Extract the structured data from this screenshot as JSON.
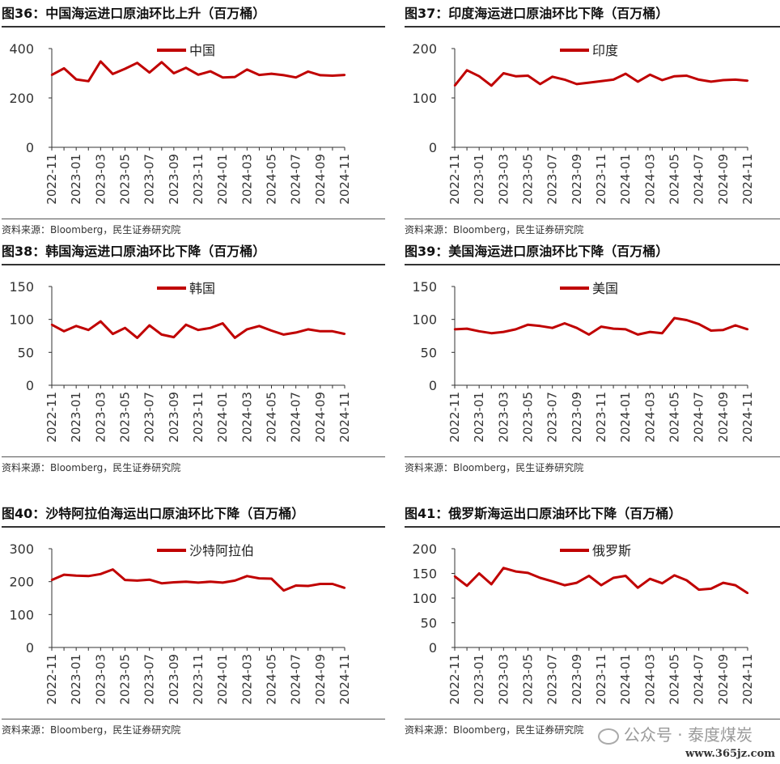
{
  "source_text": "资料来源：Bloomberg，民生证券研究院",
  "watermark": "公众号 · 泰度煤炭",
  "site": "www.365jz.com",
  "chart_data": [
    {
      "type": "line",
      "title": "图36：中国海运进口原油环比上升（百万桶）",
      "x": [
        "2022-11",
        "2022-12",
        "2023-01",
        "2023-02",
        "2023-03",
        "2023-04",
        "2023-05",
        "2023-06",
        "2023-07",
        "2023-08",
        "2023-09",
        "2023-10",
        "2023-11",
        "2023-12",
        "2024-01",
        "2024-02",
        "2024-03",
        "2024-04",
        "2024-05",
        "2024-06",
        "2024-07",
        "2024-08",
        "2024-09",
        "2024-10",
        "2024-11"
      ],
      "tick_labels": [
        "2022-11",
        "2023-01",
        "2023-03",
        "2023-05",
        "2023-07",
        "2023-09",
        "2023-11",
        "2024-01",
        "2024-03",
        "2024-05",
        "2024-07",
        "2024-09",
        "2024-11"
      ],
      "series": [
        {
          "name": "中国",
          "values": [
            293,
            320,
            275,
            268,
            348,
            297,
            318,
            342,
            303,
            345,
            300,
            322,
            294,
            308,
            283,
            285,
            315,
            293,
            298,
            292,
            283,
            307,
            292,
            290,
            293
          ]
        }
      ],
      "ylim": [
        0,
        400
      ],
      "yticks": [
        0,
        200,
        400
      ],
      "color": "#c00000",
      "grid": false,
      "legend": "top-center"
    },
    {
      "type": "line",
      "title": "图37：印度海运进口原油环比下降（百万桶）",
      "x": [
        "2022-11",
        "2022-12",
        "2023-01",
        "2023-02",
        "2023-03",
        "2023-04",
        "2023-05",
        "2023-06",
        "2023-07",
        "2023-08",
        "2023-09",
        "2023-10",
        "2023-11",
        "2023-12",
        "2024-01",
        "2024-02",
        "2024-03",
        "2024-04",
        "2024-05",
        "2024-06",
        "2024-07",
        "2024-08",
        "2024-09",
        "2024-10",
        "2024-11"
      ],
      "tick_labels": [
        "2022-11",
        "2023-01",
        "2023-03",
        "2023-05",
        "2023-07",
        "2023-09",
        "2023-11",
        "2024-01",
        "2024-03",
        "2024-05",
        "2024-07",
        "2024-09",
        "2024-11"
      ],
      "series": [
        {
          "name": "印度",
          "values": [
            125,
            156,
            144,
            125,
            150,
            144,
            145,
            128,
            143,
            137,
            128,
            131,
            134,
            137,
            149,
            133,
            147,
            136,
            144,
            145,
            137,
            133,
            136,
            137,
            135
          ]
        }
      ],
      "ylim": [
        0,
        200
      ],
      "yticks": [
        0,
        100,
        200
      ],
      "color": "#c00000",
      "grid": false,
      "legend": "top-center"
    },
    {
      "type": "line",
      "title": "图38：韩国海运进口原油环比下降（百万桶）",
      "x": [
        "2022-11",
        "2022-12",
        "2023-01",
        "2023-02",
        "2023-03",
        "2023-04",
        "2023-05",
        "2023-06",
        "2023-07",
        "2023-08",
        "2023-09",
        "2023-10",
        "2023-11",
        "2023-12",
        "2024-01",
        "2024-02",
        "2024-03",
        "2024-04",
        "2024-05",
        "2024-06",
        "2024-07",
        "2024-08",
        "2024-09",
        "2024-10",
        "2024-11"
      ],
      "tick_labels": [
        "2022-11",
        "2023-01",
        "2023-03",
        "2023-05",
        "2023-07",
        "2023-09",
        "2023-11",
        "2024-01",
        "2024-03",
        "2024-05",
        "2024-07",
        "2024-09",
        "2024-11"
      ],
      "series": [
        {
          "name": "韩国",
          "values": [
            92,
            82,
            90,
            84,
            97,
            78,
            87,
            72,
            91,
            77,
            73,
            92,
            84,
            87,
            94,
            72,
            85,
            90,
            83,
            77,
            80,
            85,
            82,
            82,
            78
          ]
        }
      ],
      "ylim": [
        0,
        150
      ],
      "yticks": [
        0,
        50,
        100,
        150
      ],
      "color": "#c00000",
      "grid": false,
      "legend": "top-center"
    },
    {
      "type": "line",
      "title": "图39：美国海运进口原油环比下降（百万桶）",
      "x": [
        "2022-11",
        "2022-12",
        "2023-01",
        "2023-02",
        "2023-03",
        "2023-04",
        "2023-05",
        "2023-06",
        "2023-07",
        "2023-08",
        "2023-09",
        "2023-10",
        "2023-11",
        "2023-12",
        "2024-01",
        "2024-02",
        "2024-03",
        "2024-04",
        "2024-05",
        "2024-06",
        "2024-07",
        "2024-08",
        "2024-09",
        "2024-10",
        "2024-11"
      ],
      "tick_labels": [
        "2022-11",
        "2023-01",
        "2023-03",
        "2023-05",
        "2023-07",
        "2023-09",
        "2023-11",
        "2024-01",
        "2024-03",
        "2024-05",
        "2024-07",
        "2024-09",
        "2024-11"
      ],
      "series": [
        {
          "name": "美国",
          "values": [
            85,
            86,
            82,
            79,
            81,
            85,
            92,
            90,
            87,
            94,
            87,
            77,
            89,
            86,
            85,
            77,
            81,
            79,
            102,
            99,
            93,
            83,
            84,
            91,
            85
          ]
        }
      ],
      "ylim": [
        0,
        150
      ],
      "yticks": [
        0,
        50,
        100,
        150
      ],
      "color": "#c00000",
      "grid": false,
      "legend": "top-center"
    },
    {
      "type": "line",
      "title": "图40：沙特阿拉伯海运出口原油环比下降（百万桶）",
      "x": [
        "2022-11",
        "2022-12",
        "2023-01",
        "2023-02",
        "2023-03",
        "2023-04",
        "2023-05",
        "2023-06",
        "2023-07",
        "2023-08",
        "2023-09",
        "2023-10",
        "2023-11",
        "2023-12",
        "2024-01",
        "2024-02",
        "2024-03",
        "2024-04",
        "2024-05",
        "2024-06",
        "2024-07",
        "2024-08",
        "2024-09",
        "2024-10",
        "2024-11"
      ],
      "tick_labels": [
        "2022-11",
        "2023-01",
        "2023-03",
        "2023-05",
        "2023-07",
        "2023-09",
        "2023-11",
        "2024-01",
        "2024-03",
        "2024-05",
        "2024-07",
        "2024-09",
        "2024-11"
      ],
      "series": [
        {
          "name": "沙特阿拉伯",
          "values": [
            205,
            221,
            218,
            217,
            223,
            237,
            205,
            203,
            206,
            195,
            198,
            200,
            197,
            200,
            197,
            203,
            217,
            210,
            209,
            173,
            188,
            187,
            193,
            193,
            181
          ]
        }
      ],
      "ylim": [
        0,
        300
      ],
      "yticks": [
        0,
        100,
        200,
        300
      ],
      "color": "#c00000",
      "grid": false,
      "legend": "top-center"
    },
    {
      "type": "line",
      "title": "图41：俄罗斯海运出口原油环比下降（百万桶）",
      "x": [
        "2022-11",
        "2022-12",
        "2023-01",
        "2023-02",
        "2023-03",
        "2023-04",
        "2023-05",
        "2023-06",
        "2023-07",
        "2023-08",
        "2023-09",
        "2023-10",
        "2023-11",
        "2023-12",
        "2024-01",
        "2024-02",
        "2024-03",
        "2024-04",
        "2024-05",
        "2024-06",
        "2024-07",
        "2024-08",
        "2024-09",
        "2024-10",
        "2024-11"
      ],
      "tick_labels": [
        "2022-11",
        "2023-01",
        "2023-03",
        "2023-05",
        "2023-07",
        "2023-09",
        "2023-11",
        "2024-01",
        "2024-03",
        "2024-05",
        "2024-07",
        "2024-09",
        "2024-11"
      ],
      "series": [
        {
          "name": "俄罗斯",
          "values": [
            144,
            125,
            150,
            128,
            161,
            154,
            151,
            141,
            134,
            126,
            131,
            145,
            126,
            141,
            145,
            121,
            139,
            130,
            146,
            136,
            117,
            119,
            131,
            126,
            110
          ]
        }
      ],
      "ylim": [
        0,
        200
      ],
      "yticks": [
        0,
        50,
        100,
        150,
        200
      ],
      "color": "#c00000",
      "grid": false,
      "legend": "top-center"
    }
  ]
}
